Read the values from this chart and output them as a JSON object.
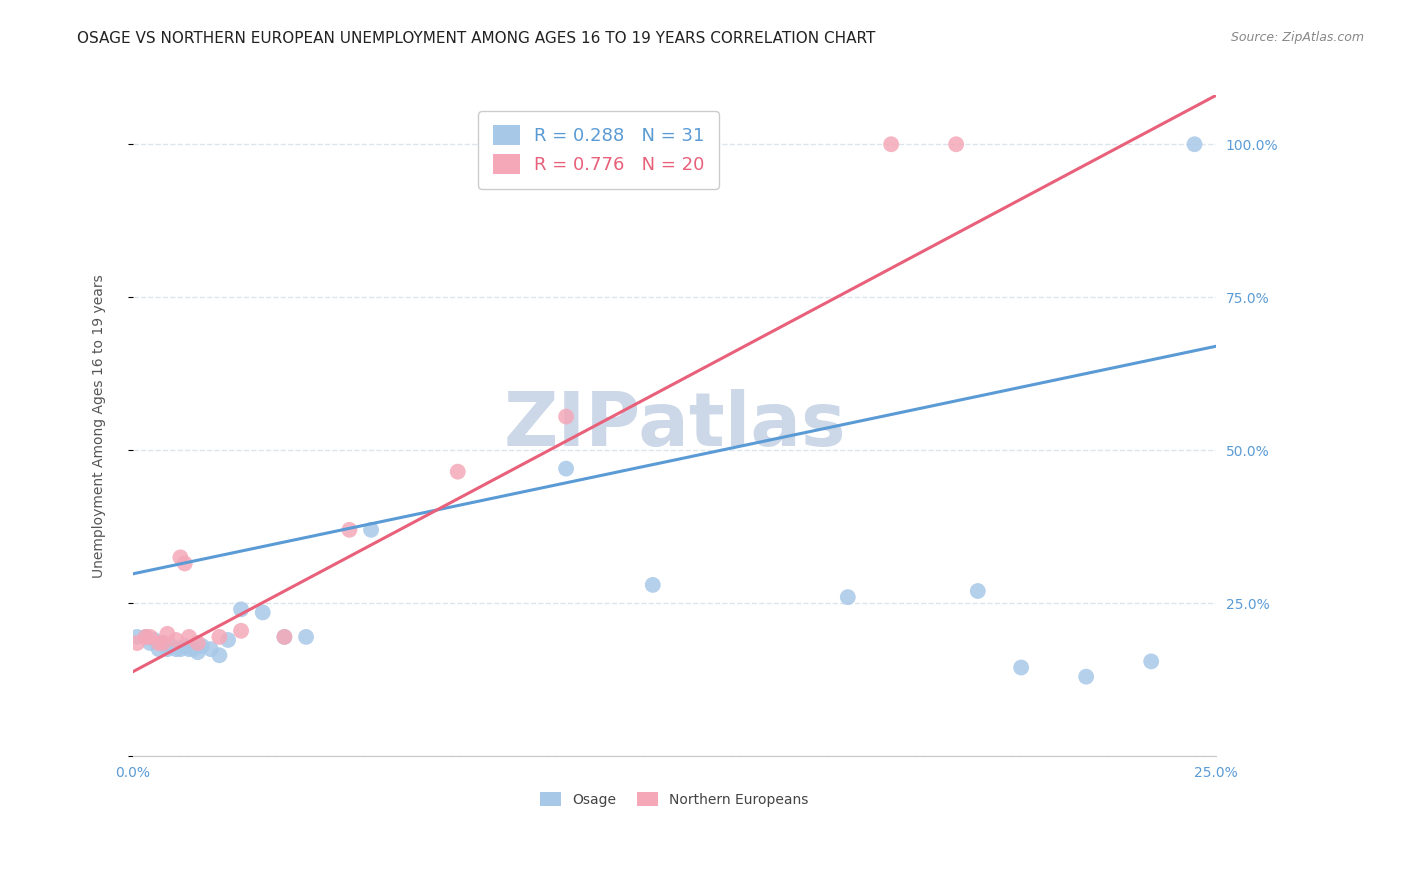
{
  "title": "OSAGE VS NORTHERN EUROPEAN UNEMPLOYMENT AMONG AGES 16 TO 19 YEARS CORRELATION CHART",
  "source": "Source: ZipAtlas.com",
  "ylabel": "Unemployment Among Ages 16 to 19 years",
  "xlim": [
    0.0,
    0.25
  ],
  "ylim": [
    0.0,
    1.08
  ],
  "xticks": [
    0.0,
    0.05,
    0.1,
    0.15,
    0.2,
    0.25
  ],
  "yticks": [
    0.0,
    0.25,
    0.5,
    0.75,
    1.0
  ],
  "ytick_labels": [
    "",
    "25.0%",
    "50.0%",
    "75.0%",
    "100.0%"
  ],
  "xtick_labels": [
    "0.0%",
    "",
    "",
    "",
    "",
    "25.0%"
  ],
  "osage_R": 0.288,
  "osage_N": 31,
  "ne_R": 0.776,
  "ne_N": 20,
  "osage_color": "#a8c8e8",
  "ne_color": "#f4a8b8",
  "osage_line_color": "#5b9bd5",
  "ne_line_color": "#e8607a",
  "watermark": "ZIPatlas",
  "watermark_color": "#ccd8e8",
  "osage_x": [
    0.001,
    0.003,
    0.004,
    0.005,
    0.006,
    0.007,
    0.008,
    0.009,
    0.01,
    0.011,
    0.012,
    0.013,
    0.014,
    0.015,
    0.016,
    0.018,
    0.02,
    0.022,
    0.025,
    0.03,
    0.035,
    0.04,
    0.055,
    0.1,
    0.12,
    0.165,
    0.195,
    0.205,
    0.22,
    0.235,
    0.245
  ],
  "osage_y": [
    0.195,
    0.195,
    0.185,
    0.19,
    0.175,
    0.185,
    0.175,
    0.18,
    0.175,
    0.175,
    0.18,
    0.175,
    0.175,
    0.17,
    0.18,
    0.175,
    0.165,
    0.19,
    0.24,
    0.235,
    0.195,
    0.195,
    0.37,
    0.47,
    0.28,
    0.26,
    0.27,
    0.145,
    0.13,
    0.155,
    1.0
  ],
  "ne_x": [
    0.001,
    0.003,
    0.004,
    0.006,
    0.007,
    0.008,
    0.01,
    0.011,
    0.012,
    0.013,
    0.015,
    0.02,
    0.025,
    0.035,
    0.05,
    0.075,
    0.1,
    0.13,
    0.175,
    0.19
  ],
  "ne_y": [
    0.185,
    0.195,
    0.195,
    0.185,
    0.185,
    0.2,
    0.19,
    0.325,
    0.315,
    0.195,
    0.185,
    0.195,
    0.205,
    0.195,
    0.37,
    0.465,
    0.555,
    1.0,
    1.0,
    1.0
  ],
  "osage_trend_x": [
    0.0,
    0.25
  ],
  "osage_trend_y": [
    0.298,
    0.67
  ],
  "ne_trend_x": [
    0.0,
    0.25
  ],
  "ne_trend_y": [
    0.138,
    1.08
  ],
  "background_color": "#ffffff",
  "grid_color": "#dce4ec",
  "title_fontsize": 11,
  "axis_label_fontsize": 10,
  "tick_fontsize": 10,
  "legend_fontsize": 13,
  "scatter_size": 130
}
